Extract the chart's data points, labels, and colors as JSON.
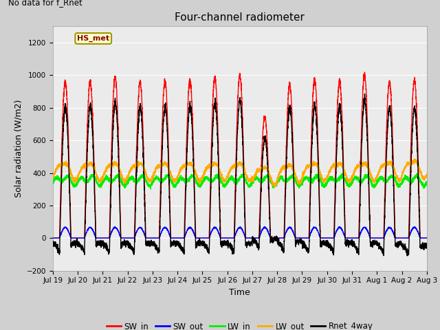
{
  "title": "Four-channel radiometer",
  "top_left_text": "No data for f_Rnet",
  "xlabel": "Time",
  "ylabel": "Solar radiation (W/m2)",
  "ylim": [
    -200,
    1300
  ],
  "yticks": [
    -200,
    0,
    200,
    400,
    600,
    800,
    1000,
    1200
  ],
  "xlim": [
    0,
    15
  ],
  "fig_facecolor": "#d0d0d0",
  "plot_facecolor": "#ebebeb",
  "legend_label": "HS_met",
  "tick_labels": [
    "Jul 19",
    "Jul 20",
    "Jul 21",
    "Jul 22",
    "Jul 23",
    "Jul 24",
    "Jul 25",
    "Jul 26",
    "Jul 27",
    "Jul 28",
    "Jul 29",
    "Jul 30",
    "Jul 31",
    "Aug 1",
    "Aug 2",
    "Aug 3"
  ],
  "line_colors": {
    "SW_in": "#ff0000",
    "SW_out": "#0000ff",
    "LW_in": "#00ee00",
    "LW_out": "#ffaa00",
    "Rnet_4way": "#000000"
  },
  "line_widths": {
    "SW_in": 1.0,
    "SW_out": 1.0,
    "LW_in": 1.2,
    "LW_out": 1.2,
    "Rnet_4way": 1.0
  }
}
